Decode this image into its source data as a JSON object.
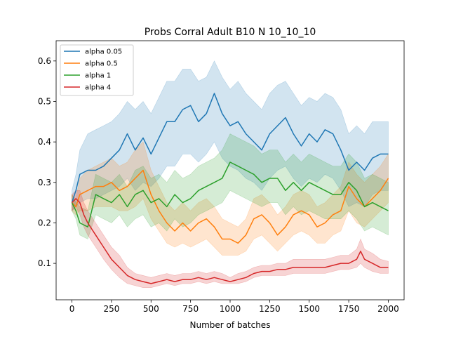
{
  "chart_data": {
    "type": "line",
    "title": "Probs Corral Adult B10 N 10_10_10",
    "xlabel": "Number of batches",
    "ylabel": "",
    "xlim": [
      -100,
      2100
    ],
    "ylim": [
      0.01,
      0.65
    ],
    "xticks": [
      0,
      250,
      500,
      750,
      1000,
      1250,
      1500,
      1750,
      2000
    ],
    "yticks": [
      0.1,
      0.2,
      0.3,
      0.4,
      0.5,
      0.6
    ],
    "grid": false,
    "legend_position": "top-left",
    "shaded_band": "uncertainty band around each series",
    "series": [
      {
        "name": "alpha 0.05",
        "color": "#1f77b4",
        "x": [
          0,
          25,
          50,
          100,
          150,
          200,
          250,
          300,
          350,
          400,
          450,
          500,
          550,
          600,
          650,
          700,
          750,
          800,
          850,
          900,
          950,
          1000,
          1050,
          1100,
          1150,
          1200,
          1250,
          1300,
          1350,
          1400,
          1450,
          1500,
          1550,
          1600,
          1650,
          1700,
          1750,
          1800,
          1850,
          1900,
          1950,
          2000
        ],
        "values": [
          0.25,
          0.28,
          0.32,
          0.33,
          0.33,
          0.34,
          0.36,
          0.38,
          0.42,
          0.38,
          0.41,
          0.37,
          0.41,
          0.45,
          0.45,
          0.48,
          0.49,
          0.45,
          0.47,
          0.52,
          0.47,
          0.44,
          0.45,
          0.42,
          0.4,
          0.38,
          0.42,
          0.44,
          0.46,
          0.42,
          0.39,
          0.42,
          0.4,
          0.43,
          0.42,
          0.38,
          0.33,
          0.35,
          0.33,
          0.36,
          0.37,
          0.37
        ],
        "lower": [
          0.23,
          0.24,
          0.25,
          0.26,
          0.26,
          0.27,
          0.28,
          0.29,
          0.31,
          0.28,
          0.3,
          0.29,
          0.31,
          0.34,
          0.34,
          0.37,
          0.37,
          0.35,
          0.37,
          0.4,
          0.36,
          0.34,
          0.33,
          0.31,
          0.3,
          0.28,
          0.31,
          0.33,
          0.34,
          0.31,
          0.29,
          0.31,
          0.3,
          0.32,
          0.31,
          0.28,
          0.24,
          0.25,
          0.24,
          0.27,
          0.28,
          0.28
        ],
        "upper": [
          0.28,
          0.32,
          0.38,
          0.42,
          0.43,
          0.44,
          0.45,
          0.47,
          0.5,
          0.48,
          0.5,
          0.47,
          0.51,
          0.55,
          0.55,
          0.58,
          0.58,
          0.55,
          0.56,
          0.6,
          0.56,
          0.53,
          0.55,
          0.52,
          0.5,
          0.48,
          0.52,
          0.54,
          0.55,
          0.52,
          0.49,
          0.51,
          0.5,
          0.52,
          0.51,
          0.48,
          0.42,
          0.44,
          0.42,
          0.45,
          0.45,
          0.45
        ]
      },
      {
        "name": "alpha 0.5",
        "color": "#ff7f0e",
        "x": [
          0,
          25,
          50,
          100,
          150,
          200,
          250,
          300,
          350,
          400,
          450,
          500,
          550,
          600,
          650,
          700,
          750,
          800,
          850,
          900,
          950,
          1000,
          1050,
          1100,
          1150,
          1200,
          1250,
          1300,
          1350,
          1400,
          1450,
          1500,
          1550,
          1600,
          1650,
          1700,
          1750,
          1800,
          1850,
          1900,
          1950,
          2000
        ],
        "values": [
          0.25,
          0.24,
          0.27,
          0.28,
          0.29,
          0.29,
          0.3,
          0.28,
          0.29,
          0.31,
          0.33,
          0.27,
          0.23,
          0.2,
          0.18,
          0.2,
          0.18,
          0.2,
          0.21,
          0.19,
          0.16,
          0.16,
          0.15,
          0.17,
          0.21,
          0.22,
          0.2,
          0.17,
          0.19,
          0.22,
          0.23,
          0.22,
          0.19,
          0.2,
          0.22,
          0.23,
          0.29,
          0.26,
          0.24,
          0.26,
          0.28,
          0.31
        ],
        "lower": [
          0.23,
          0.22,
          0.23,
          0.23,
          0.24,
          0.24,
          0.24,
          0.23,
          0.23,
          0.24,
          0.26,
          0.21,
          0.18,
          0.15,
          0.14,
          0.15,
          0.14,
          0.15,
          0.16,
          0.14,
          0.12,
          0.12,
          0.12,
          0.13,
          0.16,
          0.17,
          0.15,
          0.13,
          0.15,
          0.17,
          0.18,
          0.17,
          0.15,
          0.15,
          0.17,
          0.18,
          0.23,
          0.2,
          0.19,
          0.21,
          0.23,
          0.25
        ],
        "upper": [
          0.27,
          0.26,
          0.31,
          0.33,
          0.34,
          0.35,
          0.36,
          0.34,
          0.35,
          0.38,
          0.4,
          0.33,
          0.29,
          0.25,
          0.23,
          0.25,
          0.23,
          0.25,
          0.26,
          0.24,
          0.21,
          0.2,
          0.19,
          0.21,
          0.26,
          0.27,
          0.25,
          0.22,
          0.24,
          0.27,
          0.28,
          0.27,
          0.24,
          0.25,
          0.27,
          0.29,
          0.35,
          0.32,
          0.3,
          0.32,
          0.34,
          0.37
        ]
      },
      {
        "name": "alpha 1",
        "color": "#2ca02c",
        "x": [
          0,
          25,
          50,
          100,
          150,
          200,
          250,
          300,
          350,
          400,
          450,
          500,
          550,
          600,
          650,
          700,
          750,
          800,
          850,
          900,
          950,
          1000,
          1050,
          1100,
          1150,
          1200,
          1250,
          1300,
          1350,
          1400,
          1450,
          1500,
          1550,
          1600,
          1650,
          1700,
          1750,
          1800,
          1850,
          1900,
          1950,
          2000
        ],
        "values": [
          0.25,
          0.23,
          0.2,
          0.19,
          0.27,
          0.26,
          0.25,
          0.27,
          0.24,
          0.27,
          0.28,
          0.25,
          0.26,
          0.24,
          0.27,
          0.25,
          0.26,
          0.28,
          0.29,
          0.3,
          0.31,
          0.35,
          0.34,
          0.33,
          0.32,
          0.3,
          0.31,
          0.31,
          0.28,
          0.3,
          0.28,
          0.3,
          0.29,
          0.28,
          0.27,
          0.27,
          0.3,
          0.28,
          0.24,
          0.25,
          0.24,
          0.23
        ],
        "lower": [
          0.23,
          0.21,
          0.17,
          0.16,
          0.22,
          0.21,
          0.2,
          0.22,
          0.19,
          0.21,
          0.22,
          0.19,
          0.2,
          0.18,
          0.21,
          0.19,
          0.2,
          0.22,
          0.23,
          0.24,
          0.25,
          0.28,
          0.27,
          0.26,
          0.25,
          0.24,
          0.25,
          0.25,
          0.22,
          0.24,
          0.22,
          0.23,
          0.22,
          0.21,
          0.21,
          0.21,
          0.23,
          0.21,
          0.18,
          0.19,
          0.18,
          0.17
        ],
        "upper": [
          0.27,
          0.25,
          0.24,
          0.23,
          0.32,
          0.31,
          0.3,
          0.32,
          0.29,
          0.33,
          0.34,
          0.31,
          0.32,
          0.3,
          0.33,
          0.31,
          0.32,
          0.34,
          0.35,
          0.36,
          0.38,
          0.42,
          0.41,
          0.4,
          0.39,
          0.37,
          0.38,
          0.38,
          0.35,
          0.37,
          0.35,
          0.37,
          0.36,
          0.35,
          0.34,
          0.34,
          0.37,
          0.35,
          0.31,
          0.32,
          0.31,
          0.3
        ]
      },
      {
        "name": "alpha 4",
        "color": "#d62728",
        "x": [
          0,
          25,
          50,
          75,
          100,
          150,
          200,
          250,
          300,
          350,
          400,
          450,
          500,
          550,
          600,
          650,
          700,
          750,
          800,
          850,
          900,
          950,
          1000,
          1050,
          1100,
          1150,
          1200,
          1250,
          1300,
          1350,
          1400,
          1450,
          1500,
          1550,
          1600,
          1650,
          1700,
          1750,
          1800,
          1825,
          1850,
          1900,
          1950,
          2000
        ],
        "values": [
          0.25,
          0.26,
          0.25,
          0.22,
          0.2,
          0.17,
          0.14,
          0.11,
          0.09,
          0.07,
          0.06,
          0.055,
          0.05,
          0.055,
          0.06,
          0.055,
          0.06,
          0.06,
          0.065,
          0.06,
          0.065,
          0.06,
          0.055,
          0.06,
          0.065,
          0.075,
          0.08,
          0.08,
          0.085,
          0.085,
          0.09,
          0.09,
          0.09,
          0.09,
          0.09,
          0.095,
          0.1,
          0.1,
          0.11,
          0.13,
          0.11,
          0.1,
          0.09,
          0.09
        ],
        "lower": [
          0.23,
          0.24,
          0.22,
          0.19,
          0.17,
          0.14,
          0.11,
          0.085,
          0.065,
          0.05,
          0.045,
          0.04,
          0.04,
          0.045,
          0.05,
          0.045,
          0.05,
          0.05,
          0.055,
          0.05,
          0.055,
          0.05,
          0.05,
          0.05,
          0.055,
          0.065,
          0.07,
          0.07,
          0.07,
          0.07,
          0.075,
          0.075,
          0.075,
          0.075,
          0.075,
          0.08,
          0.085,
          0.085,
          0.09,
          0.1,
          0.09,
          0.08,
          0.075,
          0.075
        ],
        "upper": [
          0.27,
          0.28,
          0.28,
          0.25,
          0.23,
          0.2,
          0.17,
          0.14,
          0.12,
          0.09,
          0.075,
          0.07,
          0.065,
          0.07,
          0.075,
          0.07,
          0.075,
          0.075,
          0.08,
          0.075,
          0.08,
          0.075,
          0.065,
          0.075,
          0.08,
          0.09,
          0.095,
          0.095,
          0.1,
          0.1,
          0.11,
          0.11,
          0.11,
          0.11,
          0.11,
          0.115,
          0.12,
          0.12,
          0.135,
          0.16,
          0.135,
          0.125,
          0.11,
          0.105
        ]
      }
    ]
  }
}
